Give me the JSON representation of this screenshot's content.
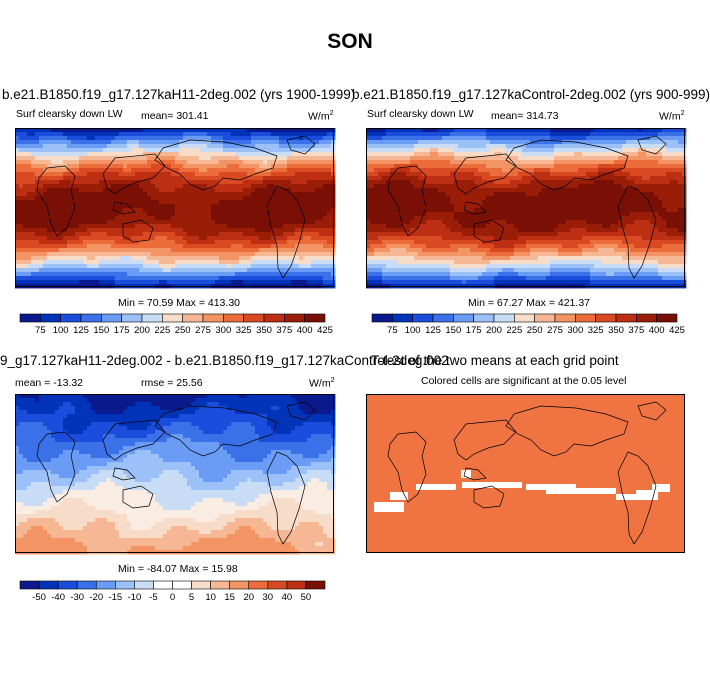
{
  "figure_title": "SON",
  "panels": [
    {
      "title": "b.e21.B1850.f19_g17.127kaH11-2deg.002 (yrs 1900-1999)",
      "left_label": "Surf clearsky down LW",
      "center_label": "mean= 301.41",
      "units_base": "W/m",
      "units_exp": "2",
      "stats": "Min =  70.59 Max = 413.30",
      "colorbar": {
        "colors": [
          "#0a1a8c",
          "#0033b8",
          "#1a4ddb",
          "#3a70e8",
          "#6a9cf5",
          "#9cc0f8",
          "#c9dcf6",
          "#f6dcc9",
          "#f6b894",
          "#f39464",
          "#ec6c3c",
          "#d94a22",
          "#bc2f12",
          "#9a1d08",
          "#7a1005"
        ],
        "labels": [
          "75",
          "100",
          "125",
          "150",
          "175",
          "200",
          "225",
          "250",
          "275",
          "300",
          "325",
          "350",
          "375",
          "400",
          "425"
        ]
      }
    },
    {
      "title": "b.e21.B1850.f19_g17.127kaControl-2deg.002 (yrs 900-999)",
      "left_label": "Surf clearsky down LW",
      "center_label": "mean= 314.73",
      "units_base": "W/m",
      "units_exp": "2",
      "stats": "Min =  67.27 Max = 421.37",
      "colorbar": {
        "colors": [
          "#0a1a8c",
          "#0033b8",
          "#1a4ddb",
          "#3a70e8",
          "#6a9cf5",
          "#9cc0f8",
          "#c9dcf6",
          "#f6dcc9",
          "#f6b894",
          "#f39464",
          "#ec6c3c",
          "#d94a22",
          "#bc2f12",
          "#9a1d08",
          "#7a1005"
        ],
        "labels": [
          "75",
          "100",
          "125",
          "150",
          "175",
          "200",
          "225",
          "250",
          "275",
          "300",
          "325",
          "350",
          "375",
          "400",
          "425"
        ]
      }
    },
    {
      "title": "9_g17.127kaH11-2deg.002 - b.e21.B1850.f19_g17.127kaControl-2deg.002",
      "left_label": "mean = -13.32",
      "center_label": "rmse =  25.56",
      "units_base": "W/m",
      "units_exp": "2",
      "stats": "Min = -84.07 Max =  15.98",
      "colorbar": {
        "colors": [
          "#0a1a8c",
          "#0033b8",
          "#1a4ddb",
          "#3a70e8",
          "#6a9cf5",
          "#9cc0f8",
          "#c9dcf6",
          "#ffffff",
          "#ffffff",
          "#f6dcc9",
          "#f6b894",
          "#f39464",
          "#ec6c3c",
          "#d94a22",
          "#bc2f12",
          "#7a1005"
        ],
        "labels": [
          "-50",
          "-40",
          "-30",
          "-20",
          "-15",
          "-10",
          "-5",
          "0",
          "5",
          "10",
          "15",
          "20",
          "30",
          "40",
          "50"
        ]
      }
    },
    {
      "title": "T-test of the two means at each grid point",
      "subtitle": "Colored cells are significant at the 0.05 level"
    }
  ]
}
